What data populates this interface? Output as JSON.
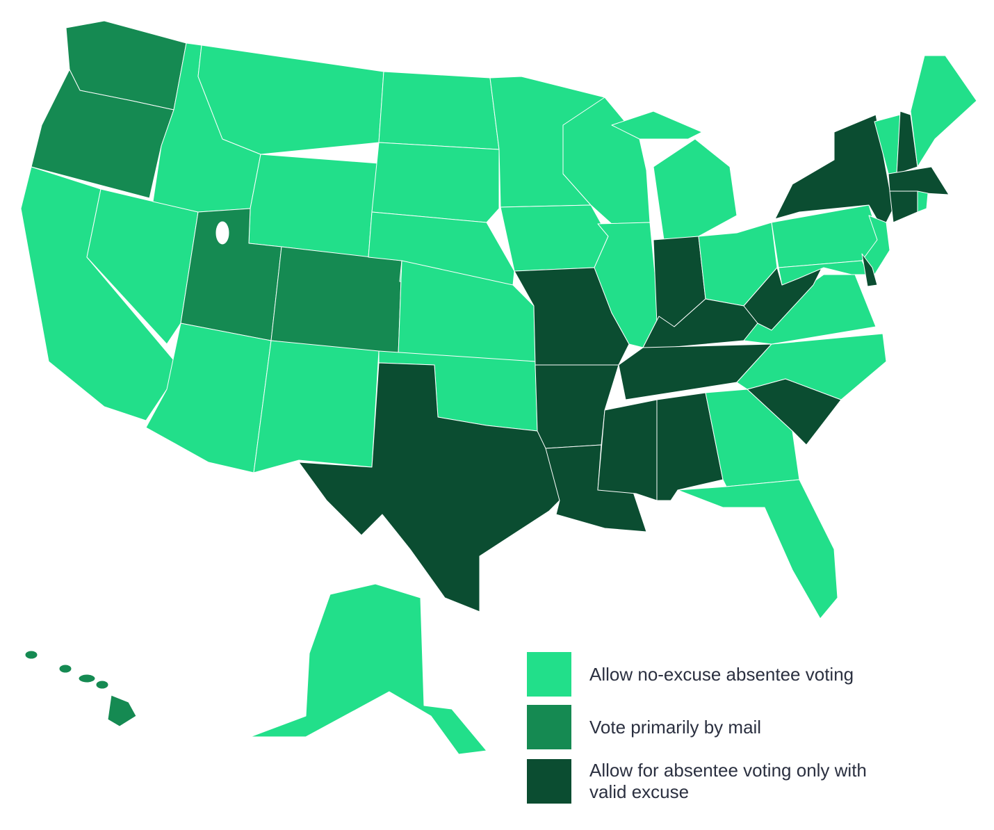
{
  "legend": {
    "items": [
      {
        "label": "Allow no-excuse absentee voting",
        "color": "#22df8a"
      },
      {
        "label": "Vote primarily by mail",
        "color": "#158a52"
      },
      {
        "label": "Allow for absentee voting only with valid excuse",
        "color": "#0b4d31"
      }
    ]
  }
}
